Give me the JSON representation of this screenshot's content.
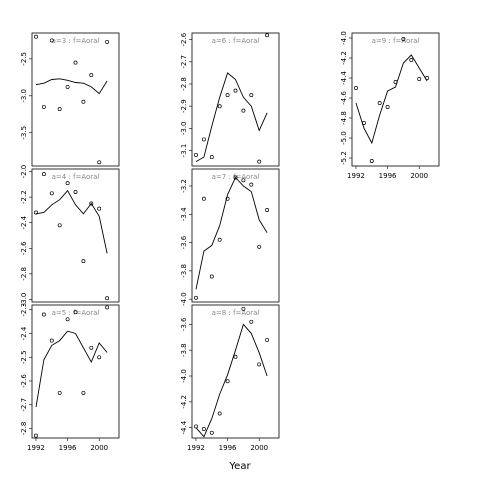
{
  "figure": {
    "xlabel": "Year"
  },
  "chart_data": [
    {
      "type": "scatter",
      "panel_label": "a=3 : f=Aoral",
      "xlim": [
        1991.5,
        2002.5
      ],
      "ylim": [
        -3.95,
        -2.15
      ],
      "y_ticks": [
        -2.5,
        -3.0,
        -3.5
      ],
      "x_ticks": [],
      "points": [
        [
          1992,
          -2.2
        ],
        [
          1993,
          -3.15
        ],
        [
          1994,
          -2.25
        ],
        [
          1995,
          -3.18
        ],
        [
          1996,
          -2.88
        ],
        [
          1997,
          -2.55
        ],
        [
          1998,
          -3.08
        ],
        [
          1999,
          -2.72
        ],
        [
          2000,
          -3.9
        ],
        [
          2001,
          -2.27
        ]
      ],
      "fit": [
        [
          1992,
          -2.85
        ],
        [
          1993,
          -2.83
        ],
        [
          1994,
          -2.78
        ],
        [
          1995,
          -2.77
        ],
        [
          1996,
          -2.79
        ],
        [
          1997,
          -2.82
        ],
        [
          1998,
          -2.83
        ],
        [
          1999,
          -2.88
        ],
        [
          2000,
          -2.97
        ],
        [
          2001,
          -2.8
        ]
      ]
    },
    {
      "type": "scatter",
      "panel_label": "a=4 : f=Aoral",
      "xlim": [
        1991.5,
        2002.5
      ],
      "ylim": [
        -3.02,
        -1.98
      ],
      "y_ticks": [
        -2.0,
        -2.2,
        -2.4,
        -2.6,
        -2.8,
        -3.0
      ],
      "x_ticks": [],
      "points": [
        [
          1992,
          -2.32
        ],
        [
          1993,
          -2.02
        ],
        [
          1994,
          -2.17
        ],
        [
          1995,
          -2.42
        ],
        [
          1996,
          -2.09
        ],
        [
          1997,
          -2.16
        ],
        [
          1998,
          -2.7
        ],
        [
          1999,
          -2.25
        ],
        [
          2000,
          -2.29
        ],
        [
          2001,
          -2.99
        ]
      ],
      "fit": [
        [
          1992,
          -2.33
        ],
        [
          1993,
          -2.32
        ],
        [
          1994,
          -2.26
        ],
        [
          1995,
          -2.22
        ],
        [
          1996,
          -2.15
        ],
        [
          1997,
          -2.26
        ],
        [
          1998,
          -2.33
        ],
        [
          1999,
          -2.25
        ],
        [
          2000,
          -2.35
        ],
        [
          2001,
          -2.64
        ]
      ]
    },
    {
      "type": "scatter",
      "panel_label": "a=5 : f=Aoral",
      "xlim": [
        1991.5,
        2002.5
      ],
      "ylim": [
        -2.84,
        -2.28
      ],
      "y_ticks": [
        -2.3,
        -2.4,
        -2.5,
        -2.6,
        -2.7,
        -2.8
      ],
      "x_ticks": [
        1992,
        1996,
        2000
      ],
      "points": [
        [
          1992,
          -2.83
        ],
        [
          1993,
          -2.32
        ],
        [
          1994,
          -2.43
        ],
        [
          1995,
          -2.65
        ],
        [
          1996,
          -2.34
        ],
        [
          1997,
          -2.31
        ],
        [
          1998,
          -2.65
        ],
        [
          1999,
          -2.46
        ],
        [
          2000,
          -2.5
        ],
        [
          2001,
          -2.29
        ]
      ],
      "fit": [
        [
          1992,
          -2.71
        ],
        [
          1993,
          -2.51
        ],
        [
          1994,
          -2.45
        ],
        [
          1995,
          -2.43
        ],
        [
          1996,
          -2.39
        ],
        [
          1997,
          -2.4
        ],
        [
          1998,
          -2.46
        ],
        [
          1999,
          -2.52
        ],
        [
          2000,
          -2.44
        ],
        [
          2001,
          -2.48
        ]
      ]
    },
    {
      "type": "scatter",
      "panel_label": "a=6 : f=Aoral",
      "xlim": [
        1991.5,
        2002.5
      ],
      "ylim": [
        -3.17,
        -2.57
      ],
      "y_ticks": [
        -2.6,
        -2.7,
        -2.8,
        -2.9,
        -3.0,
        -3.1
      ],
      "x_ticks": [],
      "points": [
        [
          1992,
          -3.12
        ],
        [
          1993,
          -3.05
        ],
        [
          1994,
          -3.13
        ],
        [
          1995,
          -2.9
        ],
        [
          1996,
          -2.85
        ],
        [
          1997,
          -2.83
        ],
        [
          1998,
          -2.92
        ],
        [
          1999,
          -2.85
        ],
        [
          2000,
          -3.15
        ],
        [
          2001,
          -2.58
        ]
      ],
      "fit": [
        [
          1992,
          -3.15
        ],
        [
          1993,
          -3.13
        ],
        [
          1994,
          -2.99
        ],
        [
          1995,
          -2.86
        ],
        [
          1996,
          -2.75
        ],
        [
          1997,
          -2.78
        ],
        [
          1998,
          -2.86
        ],
        [
          1999,
          -2.9
        ],
        [
          2000,
          -3.01
        ],
        [
          2001,
          -2.93
        ]
      ]
    },
    {
      "type": "scatter",
      "panel_label": "a=7 : f=Aoral",
      "xlim": [
        1991.5,
        2002.5
      ],
      "ylim": [
        -4.02,
        -3.08
      ],
      "y_ticks": [
        -3.2,
        -3.4,
        -3.6,
        -3.8,
        -4.0
      ],
      "x_ticks": [],
      "points": [
        [
          1992,
          -3.99
        ],
        [
          1993,
          -3.29
        ],
        [
          1994,
          -3.84
        ],
        [
          1995,
          -3.58
        ],
        [
          1996,
          -3.29
        ],
        [
          1997,
          -3.14
        ],
        [
          1998,
          -3.16
        ],
        [
          1999,
          -3.19
        ],
        [
          2000,
          -3.63
        ],
        [
          2001,
          -3.37
        ]
      ],
      "fit": [
        [
          1992,
          -3.93
        ],
        [
          1993,
          -3.66
        ],
        [
          1994,
          -3.62
        ],
        [
          1995,
          -3.48
        ],
        [
          1996,
          -3.26
        ],
        [
          1997,
          -3.14
        ],
        [
          1998,
          -3.2
        ],
        [
          1999,
          -3.24
        ],
        [
          2000,
          -3.44
        ],
        [
          2001,
          -3.53
        ]
      ]
    },
    {
      "type": "scatter",
      "panel_label": "a=8 : f=Aoral",
      "xlim": [
        1991.5,
        2002.5
      ],
      "ylim": [
        -4.48,
        -3.45
      ],
      "y_ticks": [
        -3.6,
        -3.8,
        -4.0,
        -4.2,
        -4.4
      ],
      "x_ticks": [
        1992,
        1996,
        2000
      ],
      "points": [
        [
          1992,
          -4.39
        ],
        [
          1993,
          -4.41
        ],
        [
          1994,
          -4.44
        ],
        [
          1995,
          -4.29
        ],
        [
          1996,
          -4.04
        ],
        [
          1997,
          -3.85
        ],
        [
          1998,
          -3.48
        ],
        [
          1999,
          -3.58
        ],
        [
          2000,
          -3.91
        ],
        [
          2001,
          -3.72
        ]
      ],
      "fit": [
        [
          1992,
          -4.4
        ],
        [
          1993,
          -4.47
        ],
        [
          1994,
          -4.33
        ],
        [
          1995,
          -4.14
        ],
        [
          1996,
          -3.99
        ],
        [
          1997,
          -3.8
        ],
        [
          1998,
          -3.6
        ],
        [
          1999,
          -3.67
        ],
        [
          2000,
          -3.82
        ],
        [
          2001,
          -4.0
        ]
      ]
    },
    {
      "type": "scatter",
      "panel_label": "a=9 : f=Aoral",
      "xlim": [
        1991.5,
        2002.5
      ],
      "ylim": [
        -5.28,
        -3.95
      ],
      "y_ticks": [
        -4.0,
        -4.2,
        -4.4,
        -4.6,
        -4.8,
        -5.0,
        -5.2
      ],
      "x_ticks": [
        1992,
        1996,
        2000
      ],
      "points": [
        [
          1992,
          -4.5
        ],
        [
          1993,
          -4.85
        ],
        [
          1994,
          -5.23
        ],
        [
          1995,
          -4.65
        ],
        [
          1996,
          -4.69
        ],
        [
          1997,
          -4.44
        ],
        [
          1998,
          -4.01
        ],
        [
          1999,
          -4.22
        ],
        [
          2000,
          -4.41
        ],
        [
          2001,
          -4.4
        ]
      ],
      "fit": [
        [
          1992,
          -4.65
        ],
        [
          1993,
          -4.9
        ],
        [
          1994,
          -5.05
        ],
        [
          1995,
          -4.77
        ],
        [
          1996,
          -4.53
        ],
        [
          1997,
          -4.49
        ],
        [
          1998,
          -4.25
        ],
        [
          1999,
          -4.17
        ],
        [
          2000,
          -4.3
        ],
        [
          2001,
          -4.43
        ]
      ]
    }
  ]
}
